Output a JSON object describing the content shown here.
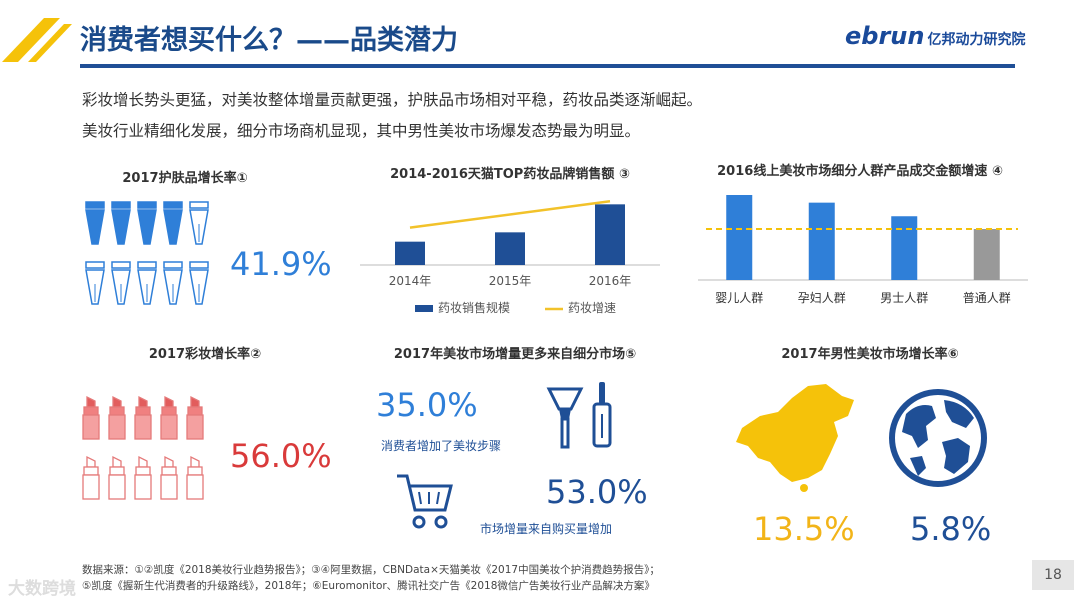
{
  "header": {
    "title": "消费者想买什么？——品类潜力",
    "logo_text": "ebrun",
    "institute": "亿邦动力研究院"
  },
  "summary": {
    "line1": "彩妆增长势头更猛，对美妆整体增量贡献更强，护肤品市场相对平稳，药妆品类逐渐崛起。",
    "line2": "美妆行业精细化发展，细分市场商机显现，其中男性美妆市场爆发态势最为明显。"
  },
  "skincare": {
    "title": "2017护肤品增长率①",
    "value": "41.9%"
  },
  "makeup": {
    "title": "2017彩妆增长率②",
    "value": "56.0%"
  },
  "submarket": {
    "title": "2017年美妆市场增量更多来自细分市场⑤",
    "stat1_value": "35.0%",
    "stat1_label": "消费者增加了美妆步骤",
    "stat2_value": "53.0%",
    "stat2_label": "市场增量来自购买量增加"
  },
  "men": {
    "title": "2017年男性美妆市场增长率⑥",
    "china_value": "13.5%",
    "world_value": "5.8%"
  },
  "chart_data": [
    {
      "type": "bar",
      "title": "2014-2016天猫TOP药妆品牌销售额 ③",
      "categories": [
        "2014年",
        "2015年",
        "2016年"
      ],
      "series": [
        {
          "name": "药妆销售规模",
          "values": [
            30,
            42,
            78
          ]
        },
        {
          "name": "药妆增速",
          "type": "line",
          "values": [
            48,
            60,
            82
          ]
        }
      ],
      "ylim": [
        0,
        90
      ]
    },
    {
      "type": "bar",
      "title": "2016线上美妆市场细分人群产品成交金额增速 ④",
      "categories": [
        "婴儿人群",
        "孕妇人群",
        "男士人群",
        "普通人群"
      ],
      "values": [
        100,
        91,
        75,
        60
      ],
      "reference_line": 60,
      "ylim": [
        0,
        100
      ]
    }
  ],
  "source": {
    "line1": "数据来源：①②凯度《2018美妆行业趋势报告》；③④阿里数据，CBNData×天猫美妆《2017中国美妆个护消费趋势报告》；",
    "line2": "⑤凯度《握新生代消费者的升级路线》，2018年；⑥Euromonitor、腾讯社交广告《2018微信广告美妆行业产品解决方案》"
  },
  "page_number": "18",
  "watermark": "大数跨境",
  "colors": {
    "navy": "#1f4f96",
    "blue": "#2f7fd8",
    "yellow": "#f5c20a",
    "red": "#d93a3a",
    "gray": "#999999"
  }
}
